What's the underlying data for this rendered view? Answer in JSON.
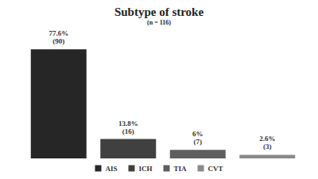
{
  "chart_data": {
    "type": "bar",
    "title": "Subtype of stroke",
    "subtitle": "(n = 116)",
    "categories": [
      "AIS",
      "ICH",
      "TIA",
      "CVT"
    ],
    "values": [
      77.6,
      13.8,
      6,
      2.6
    ],
    "value_labels": [
      "77.6%\n(90)",
      "13.8%\n(16)",
      "6%\n(7)",
      "2.6%\n(3)"
    ],
    "colors": [
      "#262626",
      "#404040",
      "#5e5e5e",
      "#8a8a8a"
    ],
    "ylim": [
      0,
      80
    ],
    "grid": false,
    "tick_labels": false,
    "data_labels": true,
    "legend": "bottom"
  }
}
